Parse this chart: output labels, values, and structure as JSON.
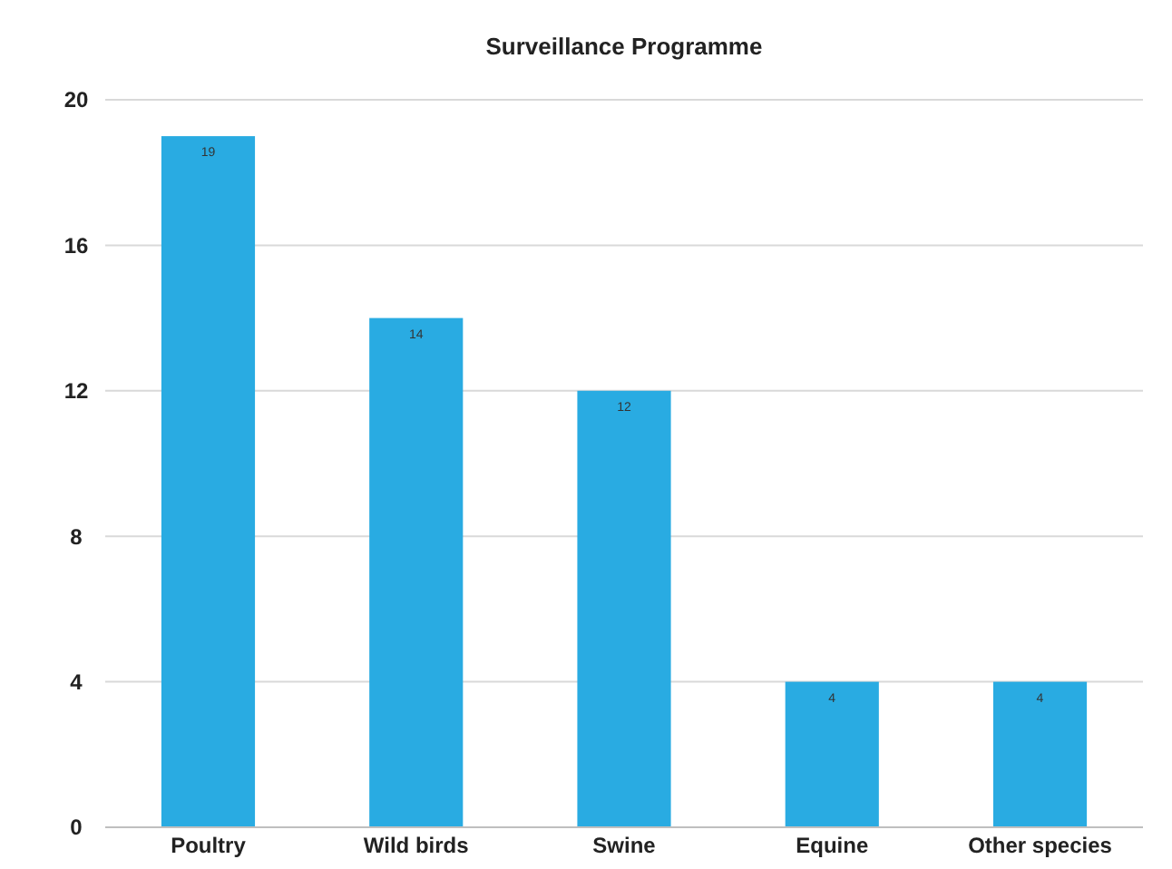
{
  "chart_data": {
    "type": "bar",
    "title": "Surveillance Programme",
    "categories": [
      "Poultry",
      "Wild birds",
      "Swine",
      "Equine",
      "Other species"
    ],
    "values": [
      19,
      14,
      12,
      4,
      4
    ],
    "color": "#29abe2",
    "ylim": [
      0,
      20
    ],
    "yticks": [
      0,
      4,
      8,
      12,
      16,
      20
    ],
    "grid": "y",
    "data_labels": true
  }
}
